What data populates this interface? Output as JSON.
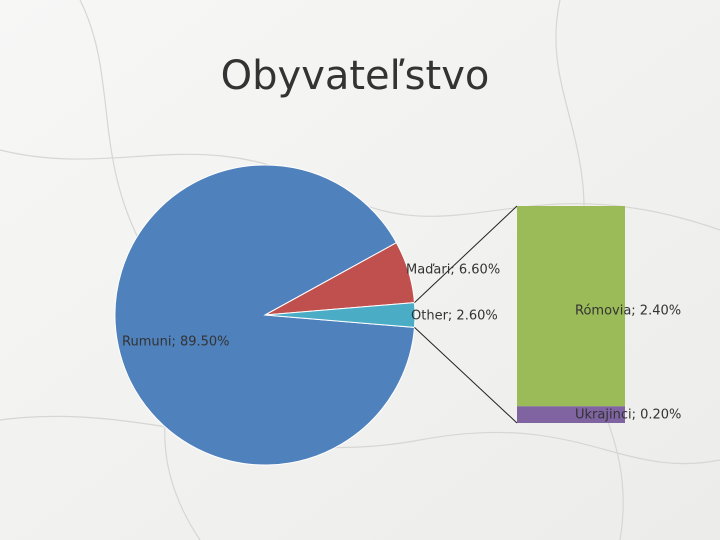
{
  "chart_data": {
    "type": "pie",
    "title": "Obyvateľstvo",
    "values": [
      89.5,
      6.6,
      2.6
    ],
    "value_labels": [
      "Rumuni; 89.50%",
      "Maďari; 6.60%",
      "Other; 2.60%"
    ],
    "colors": [
      "#4f81bd",
      "#c0504d",
      "#4bacc6"
    ],
    "breakdown": {
      "of": 2,
      "values": [
        2.4,
        0.2
      ],
      "value_labels": [
        "Rómovia; 2.40%",
        "Ukrajinci; 0.20%"
      ],
      "colors": [
        "#9bbb59",
        "#8064a2"
      ]
    }
  }
}
